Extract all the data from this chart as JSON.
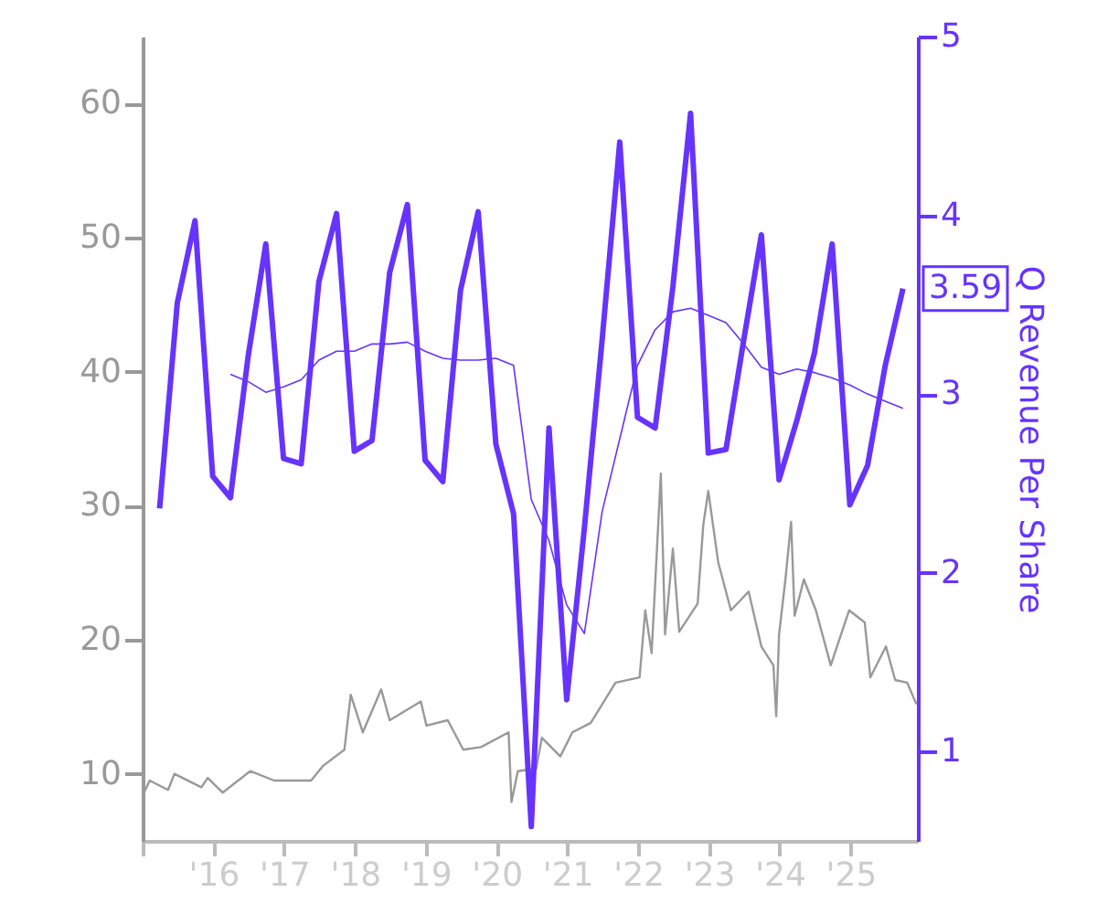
{
  "chart_data": {
    "type": "line",
    "y2label": "Q Revenue Per Share",
    "xlim": [
      2015,
      2025.95
    ],
    "xticks": [
      {
        "value": 2015,
        "label": null
      },
      {
        "value": 2016,
        "label": "'16"
      },
      {
        "value": 2017,
        "label": "'17"
      },
      {
        "value": 2018,
        "label": "'18"
      },
      {
        "value": 2019,
        "label": "'19"
      },
      {
        "value": 2020,
        "label": "'20"
      },
      {
        "value": 2021,
        "label": "'21"
      },
      {
        "value": 2022,
        "label": "'22"
      },
      {
        "value": 2023,
        "label": "'23"
      },
      {
        "value": 2024,
        "label": "'24"
      },
      {
        "value": 2025,
        "label": "'25"
      }
    ],
    "ylim": [
      5,
      65
    ],
    "yticks": [
      10,
      20,
      30,
      40,
      50,
      60
    ],
    "y2lim": [
      0.5,
      5
    ],
    "y2ticks": [
      1,
      2,
      3,
      4,
      5
    ],
    "grid": false,
    "series": [
      {
        "color": "#999999",
        "axis": "y",
        "x": [
          2015.02,
          2015.1,
          2015.36,
          2015.45,
          2015.83,
          2015.92,
          2016.13,
          2016.52,
          2016.86,
          2017.38,
          2017.55,
          2017.85,
          2017.94,
          2018.11,
          2018.37,
          2018.49,
          2018.93,
          2019.01,
          2019.31,
          2019.53,
          2019.78,
          2020.17,
          2020.21,
          2020.3,
          2020.56,
          2020.64,
          2020.9,
          2021.07,
          2021.33,
          2021.68,
          2022.02,
          2022.1,
          2022.19,
          2022.32,
          2022.38,
          2022.49,
          2022.58,
          2022.84,
          2022.92,
          2022.99,
          2023.13,
          2023.31,
          2023.56,
          2023.74,
          2023.91,
          2023.95,
          2023.99,
          2024.08,
          2024.16,
          2024.21,
          2024.34,
          2024.51,
          2024.72,
          2024.98,
          2025.2,
          2025.28,
          2025.5,
          2025.63,
          2025.8,
          2025.93
        ],
        "values": [
          8.6,
          9.5,
          8.8,
          10.0,
          9.0,
          9.7,
          8.6,
          10.2,
          9.5,
          9.5,
          10.6,
          11.8,
          15.9,
          13.1,
          16.3,
          14.0,
          15.4,
          13.6,
          14.0,
          11.8,
          12.0,
          13.1,
          7.9,
          10.2,
          10.4,
          12.7,
          11.3,
          13.1,
          13.8,
          16.8,
          17.2,
          22.2,
          19.0,
          32.4,
          20.4,
          26.8,
          20.6,
          22.7,
          28.6,
          31.1,
          25.8,
          22.2,
          23.6,
          19.5,
          18.1,
          14.3,
          20.4,
          24.5,
          28.8,
          21.8,
          24.5,
          22.2,
          18.1,
          22.2,
          21.3,
          17.2,
          19.5,
          17.0,
          16.8,
          15.2
        ]
      },
      {
        "color": "#6633ff",
        "axis": "y2",
        "x": [
          2015.24,
          2015.49,
          2015.74,
          2015.99,
          2016.24,
          2016.49,
          2016.74,
          2016.99,
          2017.24,
          2017.49,
          2017.74,
          2017.99,
          2018.24,
          2018.49,
          2018.74,
          2018.99,
          2019.24,
          2019.49,
          2019.74,
          2019.99,
          2020.24,
          2020.49,
          2020.74,
          2020.99,
          2021.24,
          2021.49,
          2021.74,
          2021.99,
          2022.24,
          2022.49,
          2022.74,
          2022.99,
          2023.24,
          2023.49,
          2023.74,
          2023.99,
          2024.24,
          2024.49,
          2024.74,
          2024.99,
          2025.24,
          2025.49,
          2025.74
        ],
        "values": [
          2.36,
          3.51,
          3.97,
          2.54,
          2.42,
          3.21,
          3.84,
          2.64,
          2.61,
          3.63,
          4.01,
          2.68,
          2.74,
          3.68,
          4.06,
          2.63,
          2.51,
          3.58,
          4.02,
          2.72,
          2.33,
          0.58,
          2.81,
          1.29,
          2.25,
          3.3,
          4.41,
          2.87,
          2.81,
          3.6,
          4.57,
          2.67,
          2.69,
          3.3,
          3.89,
          2.52,
          2.85,
          3.23,
          3.84,
          2.38,
          2.6,
          3.16,
          3.59
        ],
        "value_labels": [
          null,
          null,
          null,
          null,
          null,
          null,
          null,
          null,
          null,
          null,
          null,
          null,
          null,
          null,
          null,
          null,
          null,
          null,
          null,
          null,
          null,
          null,
          null,
          null,
          null,
          null,
          null,
          null,
          null,
          null,
          null,
          null,
          null,
          null,
          null,
          null,
          null,
          null,
          null,
          null,
          null,
          null,
          "3.59"
        ]
      },
      {
        "color": "#6633ff",
        "axis": "y2",
        "x": [
          2016.24,
          2016.49,
          2016.74,
          2016.99,
          2017.24,
          2017.49,
          2017.74,
          2017.99,
          2018.24,
          2018.49,
          2018.74,
          2018.99,
          2019.24,
          2019.49,
          2019.74,
          2019.99,
          2020.24,
          2020.49,
          2020.74,
          2020.99,
          2021.24,
          2021.49,
          2021.74,
          2021.99,
          2022.24,
          2022.49,
          2022.74,
          2022.99,
          2023.24,
          2023.49,
          2023.74,
          2023.99,
          2024.24,
          2024.49,
          2024.74,
          2024.99,
          2025.24,
          2025.49,
          2025.74
        ],
        "values": [
          3.11,
          3.07,
          3.01,
          3.04,
          3.08,
          3.19,
          3.24,
          3.24,
          3.28,
          3.28,
          3.29,
          3.24,
          3.2,
          3.19,
          3.19,
          3.2,
          3.16,
          2.41,
          2.18,
          1.82,
          1.66,
          2.34,
          2.75,
          3.16,
          3.36,
          3.46,
          3.48,
          3.44,
          3.4,
          3.28,
          3.15,
          3.11,
          3.14,
          3.12,
          3.09,
          3.05,
          3.0,
          2.96,
          2.92
        ]
      }
    ]
  }
}
